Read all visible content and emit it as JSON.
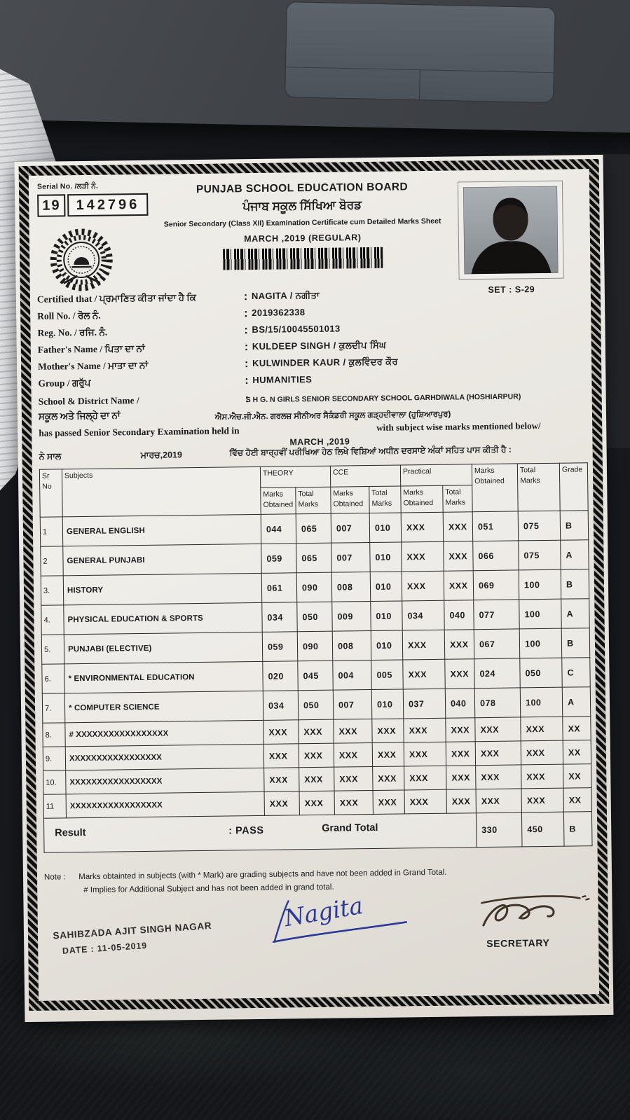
{
  "colors": {
    "paper": "#ece9e4",
    "ink": "#1c1c1c",
    "signature_blue": "#2b3a96",
    "secretary_ink": "#40332a"
  },
  "certificate": {
    "separator": ":",
    "serial": {
      "label": "Serial No. /ਲੜੀ ਨੰ.",
      "book_no": "19",
      "number": "142796"
    },
    "board_name_en": "PUNJAB SCHOOL EDUCATION BOARD",
    "board_name_pa": "ਪੰਜਾਬ ਸਕੂਲ ਸਿੱਖਿਆ ਬੋਰਡ",
    "subtitle": "Senior Secondary (Class XII) Examination Certificate cum Detailed Marks Sheet",
    "session": "MARCH ,2019 (REGULAR)",
    "set_label": "SET : S-29",
    "fields": [
      {
        "label": "Certified that  / ਪ੍ਰਮਾਣਿਤ ਕੀਤਾ ਜਾਂਦਾ ਹੈ ਕਿ",
        "value": "NAGITA / ਨਗੀਤਾ"
      },
      {
        "label": "Roll No.  / ਰੋਲ ਨੰ.",
        "value": "2019362338"
      },
      {
        "label": "Reg. No. / ਰਜਿ. ਨੰ.",
        "value": "BS/15/10045501013"
      },
      {
        "label": "Father's Name / ਪਿਤਾ ਦਾ ਨਾਂ",
        "value": "KULDEEP SINGH / ਕੁਲਦੀਪ ਸਿੰਘ"
      },
      {
        "label": "Mother's Name / ਮਾਤਾ ਦਾ ਨਾਂ",
        "value": "KULWINDER KAUR / ਕੁਲਵਿੰਦਰ ਕੌਰ"
      },
      {
        "label": "Group / ਗਰੁੱਪ",
        "value": "HUMANITIES"
      }
    ],
    "school": {
      "label_en": "School & District Name /",
      "label_pa": "ਸਕੂਲ ਅਤੇ ਜਿਲ੍ਹੇ ਦਾ ਨਾਂ",
      "value_en": "S H G. N GIRLS SENIOR SECONDARY SCHOOL GARHDIWALA (HOSHIARPUR)",
      "value_pa": "ਐਸ.ਐਚ.ਜੀ.ਐਨ. ਗਰਲਜ਼ ਸੀਨੀਅਰ ਸੈਕੰਡਰੀ ਸਕੂਲ ਗੜ੍ਹਦੀਵਾਲਾ (ਹੁਸ਼ਿਆਰਪੁਰ)"
    },
    "passed": {
      "en_before": "has passed  Senior Secondary Examination held in",
      "en_month": "MARCH ,2019",
      "en_after": "with subject wise marks mentioned below/",
      "pa_before": "ਨੇ ਸਾਲ",
      "pa_month": "ਮਾਰਚ,2019",
      "pa_after": "ਵਿੱਚ ਹੋਈ ਬਾਰ੍ਹਵੀਂ ਪਰੀਖਿਆ ਹੇਠ ਲਿਖੇ ਵਿਸ਼ਿਆਂ ਅਧੀਨ ਦਰਸਾਏ ਅੰਕਾਂ ਸਹਿਤ ਪਾਸ ਕੀਤੀ ਹੈ :"
    },
    "table": {
      "headers": {
        "sr": "Sr\nNo",
        "subjects": "Subjects",
        "theory": "THEORY",
        "cce": "CCE",
        "practical": "Practical",
        "marks_obtained_2l": "Marks\nObtained",
        "total_marks_2l": "Total\nMarks",
        "total_marks_1l": "Total Marks",
        "grade": "Grade"
      },
      "rows": [
        {
          "sr": "1",
          "subject": "GENERAL ENGLISH",
          "marks": [
            "044",
            "065",
            "007",
            "010",
            "XXX",
            "XXX",
            "051",
            "075",
            "B"
          ]
        },
        {
          "sr": "2",
          "subject": "GENERAL PUNJABI",
          "marks": [
            "059",
            "065",
            "007",
            "010",
            "XXX",
            "XXX",
            "066",
            "075",
            "A"
          ]
        },
        {
          "sr": "3.",
          "subject": "HISTORY",
          "marks": [
            "061",
            "090",
            "008",
            "010",
            "XXX",
            "XXX",
            "069",
            "100",
            "B"
          ]
        },
        {
          "sr": "4.",
          "subject": "PHYSICAL EDUCATION & SPORTS",
          "marks": [
            "034",
            "050",
            "009",
            "010",
            "034",
            "040",
            "077",
            "100",
            "A"
          ]
        },
        {
          "sr": "5.",
          "subject": "PUNJABI (ELECTIVE)",
          "marks": [
            "059",
            "090",
            "008",
            "010",
            "XXX",
            "XXX",
            "067",
            "100",
            "B"
          ]
        },
        {
          "sr": "6.",
          "subject": "* ENVIRONMENTAL EDUCATION",
          "marks": [
            "020",
            "045",
            "004",
            "005",
            "XXX",
            "XXX",
            "024",
            "050",
            "C"
          ]
        },
        {
          "sr": "7.",
          "subject": "* COMPUTER SCIENCE",
          "marks": [
            "034",
            "050",
            "007",
            "010",
            "037",
            "040",
            "078",
            "100",
            "A"
          ]
        },
        {
          "sr": "8.",
          "subject": "# XXXXXXXXXXXXXXXXX",
          "marks": [
            "XXX",
            "XXX",
            "XXX",
            "XXX",
            "XXX",
            "XXX",
            "XXX",
            "XXX",
            "XX"
          ]
        },
        {
          "sr": "9.",
          "subject": "XXXXXXXXXXXXXXXXX",
          "marks": [
            "XXX",
            "XXX",
            "XXX",
            "XXX",
            "XXX",
            "XXX",
            "XXX",
            "XXX",
            "XX"
          ]
        },
        {
          "sr": "10.",
          "subject": "XXXXXXXXXXXXXXXXX",
          "marks": [
            "XXX",
            "XXX",
            "XXX",
            "XXX",
            "XXX",
            "XXX",
            "XXX",
            "XXX",
            "XX"
          ]
        },
        {
          "sr": "11",
          "subject": "XXXXXXXXXXXXXXXXX",
          "marks": [
            "XXX",
            "XXX",
            "XXX",
            "XXX",
            "XXX",
            "XXX",
            "XXX",
            "XXX",
            "XX"
          ]
        }
      ],
      "footer": {
        "result_label": "Result",
        "result_value": ": PASS",
        "grand_total_label": "Grand Total",
        "marks_obtained": "330",
        "total_marks": "450",
        "grade": "B"
      }
    },
    "note": {
      "label": "Note :",
      "line1": "Marks obtainted in subjects (with * Mark) are grading subjects and have not been added in Grand Total.",
      "line2": "# Implies for Additional Subject and has not been added in grand total."
    },
    "footer": {
      "place": "SAHIBZADA AJIT SINGH NAGAR",
      "date": "DATE : 11-05-2019",
      "student_signature": "Nagita",
      "secretary_label": "SECRETARY"
    }
  }
}
